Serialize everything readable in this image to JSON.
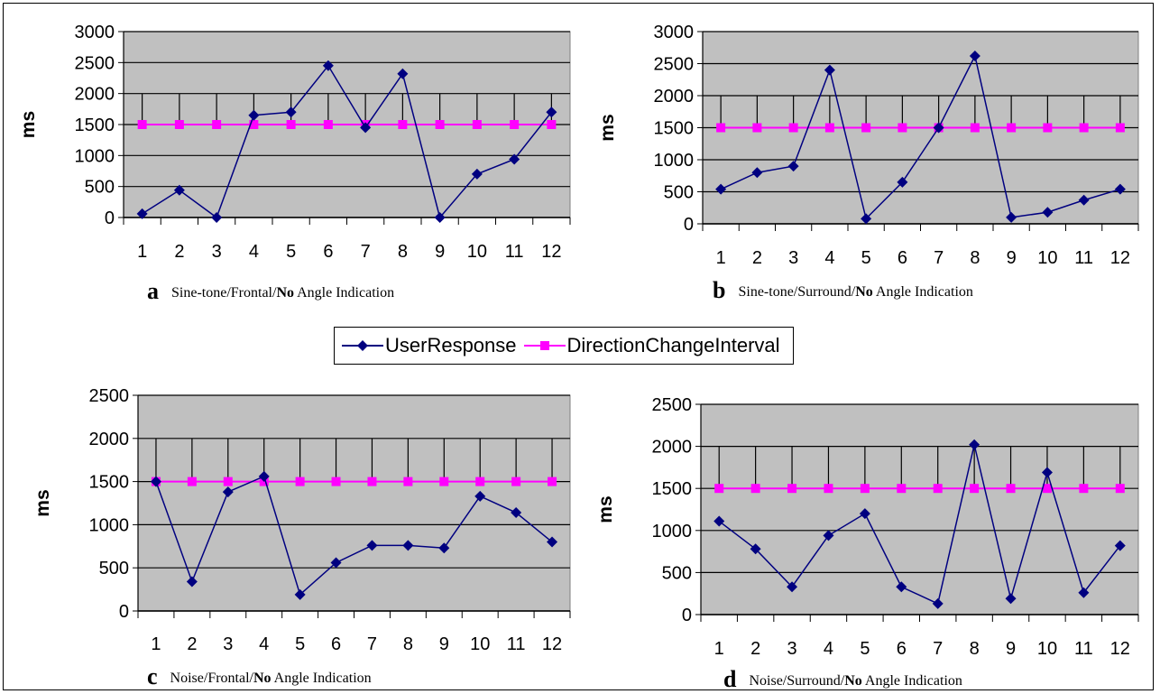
{
  "legend": {
    "series1": "UserResponse",
    "series2": "DirectionChangeInterval",
    "colors": {
      "series1": "#000080",
      "series2": "#ff00ff"
    }
  },
  "panels": [
    {
      "letter": "a",
      "caption_pre": "Sine-tone/Frontal/",
      "caption_bold": "No",
      "caption_post": " Angle Indication"
    },
    {
      "letter": "b",
      "caption_pre": "Sine-tone/Surround/",
      "caption_bold": "No",
      "caption_post": " Angle Indication"
    },
    {
      "letter": "c",
      "caption_pre": "Noise/Frontal/",
      "caption_bold": "No",
      "caption_post": " Angle Indication"
    },
    {
      "letter": "d",
      "caption_pre": "Noise/Surround/",
      "caption_bold": "No",
      "caption_post": " Angle Indication"
    }
  ],
  "chart_data": [
    {
      "type": "line",
      "ylabel": "ms",
      "categories": [
        "1",
        "2",
        "3",
        "4",
        "5",
        "6",
        "7",
        "8",
        "9",
        "10",
        "11",
        "12"
      ],
      "ylim": [
        0,
        3000
      ],
      "yticks": [
        0,
        500,
        1000,
        1500,
        2000,
        2500,
        3000
      ],
      "grid": true,
      "series": [
        {
          "name": "UserResponse",
          "values": [
            60,
            440,
            0,
            1650,
            1700,
            2450,
            1450,
            2320,
            0,
            700,
            940,
            1700
          ]
        },
        {
          "name": "DirectionChangeInterval",
          "values": [
            1500,
            1500,
            1500,
            1500,
            1500,
            1500,
            1500,
            1500,
            1500,
            1500,
            1500,
            1500
          ]
        }
      ]
    },
    {
      "type": "line",
      "ylabel": "ms",
      "categories": [
        "1",
        "2",
        "3",
        "4",
        "5",
        "6",
        "7",
        "8",
        "9",
        "10",
        "11",
        "12"
      ],
      "ylim": [
        0,
        3000
      ],
      "yticks": [
        0,
        500,
        1000,
        1500,
        2000,
        2500,
        3000
      ],
      "grid": true,
      "series": [
        {
          "name": "UserResponse",
          "values": [
            540,
            800,
            900,
            2400,
            80,
            650,
            1500,
            2620,
            100,
            180,
            370,
            540
          ]
        },
        {
          "name": "DirectionChangeInterval",
          "values": [
            1500,
            1500,
            1500,
            1500,
            1500,
            1500,
            1500,
            1500,
            1500,
            1500,
            1500,
            1500
          ]
        }
      ]
    },
    {
      "type": "line",
      "ylabel": "ms",
      "categories": [
        "1",
        "2",
        "3",
        "4",
        "5",
        "6",
        "7",
        "8",
        "9",
        "10",
        "11",
        "12"
      ],
      "ylim": [
        0,
        2500
      ],
      "yticks": [
        0,
        500,
        1000,
        1500,
        2000,
        2500
      ],
      "grid": true,
      "series": [
        {
          "name": "UserResponse",
          "values": [
            1500,
            340,
            1380,
            1560,
            190,
            560,
            760,
            760,
            730,
            1330,
            1140,
            800
          ]
        },
        {
          "name": "DirectionChangeInterval",
          "values": [
            1500,
            1500,
            1500,
            1500,
            1500,
            1500,
            1500,
            1500,
            1500,
            1500,
            1500,
            1500
          ]
        }
      ]
    },
    {
      "type": "line",
      "ylabel": "ms",
      "categories": [
        "1",
        "2",
        "3",
        "4",
        "5",
        "6",
        "7",
        "8",
        "9",
        "10",
        "11",
        "12"
      ],
      "ylim": [
        0,
        2500
      ],
      "yticks": [
        0,
        500,
        1000,
        1500,
        2000,
        2500
      ],
      "grid": true,
      "series": [
        {
          "name": "UserResponse",
          "values": [
            1110,
            780,
            330,
            940,
            1200,
            330,
            130,
            2020,
            190,
            1690,
            260,
            820
          ]
        },
        {
          "name": "DirectionChangeInterval",
          "values": [
            1500,
            1500,
            1500,
            1500,
            1500,
            1500,
            1500,
            1500,
            1500,
            1500,
            1500,
            1500
          ]
        }
      ]
    }
  ]
}
